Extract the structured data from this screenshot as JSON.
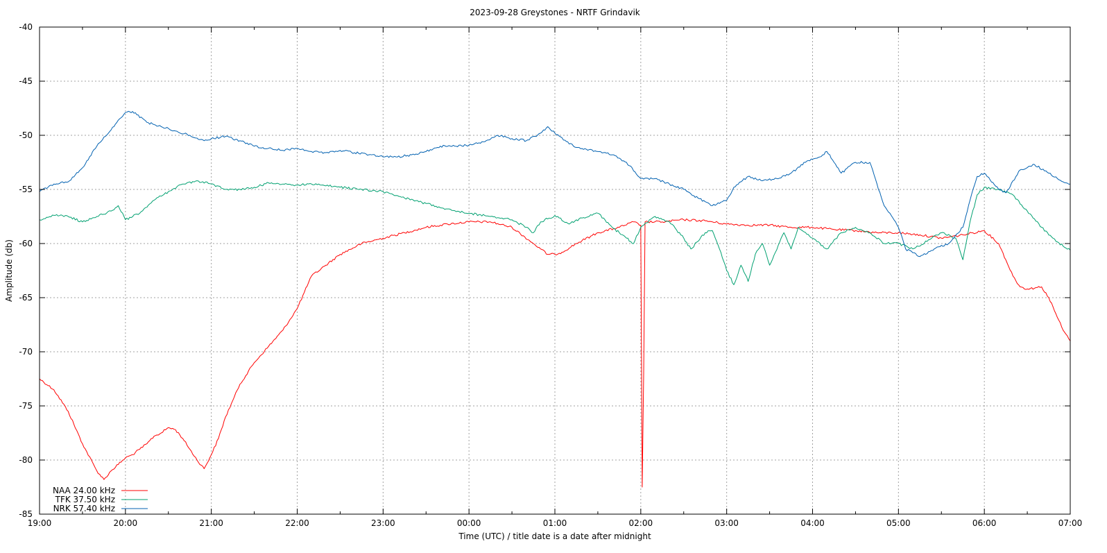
{
  "chart_data": {
    "type": "line",
    "title": "2023-09-28 Greystones - NRTF Grindavik",
    "xlabel": "Time (UTC) / title date is a date after midnight",
    "ylabel": "Amplitude (db)",
    "x_unit": "hours (19:00 to 07:00 next day)",
    "xlim": [
      "19:00",
      "07:00"
    ],
    "ylim": [
      -85,
      -40
    ],
    "x_ticks": [
      "19:00",
      "20:00",
      "21:00",
      "22:00",
      "23:00",
      "00:00",
      "01:00",
      "02:00",
      "03:00",
      "04:00",
      "05:00",
      "06:00",
      "07:00"
    ],
    "y_ticks": [
      "-40",
      "-45",
      "-50",
      "-55",
      "-60",
      "-65",
      "-70",
      "-75",
      "-80",
      "-85"
    ],
    "grid": true,
    "legend_position": "bottom-left",
    "series": [
      {
        "name": "NAA 24.00 kHz",
        "color": "#ff0000",
        "points": [
          [
            "19:00",
            -72.5
          ],
          [
            "19:10",
            -73.5
          ],
          [
            "19:20",
            -75.5
          ],
          [
            "19:30",
            -78.5
          ],
          [
            "19:40",
            -81.0
          ],
          [
            "19:45",
            -81.8
          ],
          [
            "19:50",
            -81.0
          ],
          [
            "20:00",
            -79.8
          ],
          [
            "20:05",
            -79.5
          ],
          [
            "20:10",
            -79.0
          ],
          [
            "20:15",
            -78.5
          ],
          [
            "20:20",
            -77.8
          ],
          [
            "20:25",
            -77.5
          ],
          [
            "20:30",
            -77.0
          ],
          [
            "20:35",
            -77.2
          ],
          [
            "20:40",
            -78.0
          ],
          [
            "20:45",
            -79.0
          ],
          [
            "20:50",
            -80.0
          ],
          [
            "20:55",
            -80.8
          ],
          [
            "21:00",
            -79.5
          ],
          [
            "21:05",
            -78.0
          ],
          [
            "21:10",
            -76.0
          ],
          [
            "21:15",
            -74.5
          ],
          [
            "21:20",
            -73.0
          ],
          [
            "21:30",
            -71.0
          ],
          [
            "21:40",
            -69.5
          ],
          [
            "21:50",
            -68.0
          ],
          [
            "22:00",
            -66.0
          ],
          [
            "22:05",
            -64.5
          ],
          [
            "22:10",
            -63.0
          ],
          [
            "22:20",
            -62.0
          ],
          [
            "22:30",
            -61.0
          ],
          [
            "22:45",
            -60.0
          ],
          [
            "23:00",
            -59.5
          ],
          [
            "23:15",
            -59.0
          ],
          [
            "23:30",
            -58.5
          ],
          [
            "23:45",
            -58.2
          ],
          [
            "00:00",
            -58.0
          ],
          [
            "00:15",
            -58.0
          ],
          [
            "00:30",
            -58.5
          ],
          [
            "00:45",
            -60.0
          ],
          [
            "00:50",
            -60.5
          ],
          [
            "00:55",
            -61.0
          ],
          [
            "01:00",
            -61.0
          ],
          [
            "01:05",
            -60.8
          ],
          [
            "01:15",
            -60.0
          ],
          [
            "01:30",
            -59.0
          ],
          [
            "01:45",
            -58.5
          ],
          [
            "01:55",
            -58.0
          ],
          [
            "02:00",
            -58.3
          ],
          [
            "02:01",
            -82.5
          ],
          [
            "02:02",
            -72.0
          ],
          [
            "02:03",
            -58.0
          ],
          [
            "02:15",
            -58.0
          ],
          [
            "02:30",
            -57.8
          ],
          [
            "02:45",
            -57.9
          ],
          [
            "03:00",
            -58.2
          ],
          [
            "03:15",
            -58.3
          ],
          [
            "03:30",
            -58.3
          ],
          [
            "03:45",
            -58.5
          ],
          [
            "04:00",
            -58.5
          ],
          [
            "04:15",
            -58.7
          ],
          [
            "04:30",
            -58.8
          ],
          [
            "04:45",
            -59.0
          ],
          [
            "05:00",
            -59.0
          ],
          [
            "05:15",
            -59.2
          ],
          [
            "05:30",
            -59.5
          ],
          [
            "05:45",
            -59.2
          ],
          [
            "06:00",
            -58.8
          ],
          [
            "06:10",
            -60.0
          ],
          [
            "06:15",
            -61.5
          ],
          [
            "06:20",
            -63.0
          ],
          [
            "06:25",
            -64.0
          ],
          [
            "06:30",
            -64.2
          ],
          [
            "06:40",
            -64.0
          ],
          [
            "06:45",
            -65.0
          ],
          [
            "06:50",
            -66.5
          ],
          [
            "06:55",
            -68.0
          ],
          [
            "07:00",
            -69.0
          ]
        ]
      },
      {
        "name": "TFK 37.50 kHz",
        "color": "#00a070",
        "points": [
          [
            "19:00",
            -57.8
          ],
          [
            "19:10",
            -57.4
          ],
          [
            "19:20",
            -57.5
          ],
          [
            "19:30",
            -58.0
          ],
          [
            "19:40",
            -57.5
          ],
          [
            "19:50",
            -57.0
          ],
          [
            "19:55",
            -56.5
          ],
          [
            "20:00",
            -57.8
          ],
          [
            "20:10",
            -57.2
          ],
          [
            "20:20",
            -56.0
          ],
          [
            "20:30",
            -55.2
          ],
          [
            "20:40",
            -54.5
          ],
          [
            "20:50",
            -54.2
          ],
          [
            "21:00",
            -54.5
          ],
          [
            "21:10",
            -55.0
          ],
          [
            "21:20",
            -55.0
          ],
          [
            "21:30",
            -54.8
          ],
          [
            "21:40",
            -54.4
          ],
          [
            "21:50",
            -54.5
          ],
          [
            "22:00",
            -54.6
          ],
          [
            "22:15",
            -54.5
          ],
          [
            "22:30",
            -54.8
          ],
          [
            "22:45",
            -55.0
          ],
          [
            "23:00",
            -55.2
          ],
          [
            "23:15",
            -55.8
          ],
          [
            "23:30",
            -56.3
          ],
          [
            "23:45",
            -56.8
          ],
          [
            "00:00",
            -57.2
          ],
          [
            "00:15",
            -57.5
          ],
          [
            "00:30",
            -57.8
          ],
          [
            "00:40",
            -58.5
          ],
          [
            "00:45",
            -59.0
          ],
          [
            "00:50",
            -58.0
          ],
          [
            "01:00",
            -57.4
          ],
          [
            "01:10",
            -58.2
          ],
          [
            "01:20",
            -57.6
          ],
          [
            "01:30",
            -57.2
          ],
          [
            "01:40",
            -58.5
          ],
          [
            "01:50",
            -59.5
          ],
          [
            "01:55",
            -60.0
          ],
          [
            "02:00",
            -58.5
          ],
          [
            "02:10",
            -57.5
          ],
          [
            "02:20",
            -58.0
          ],
          [
            "02:30",
            -59.5
          ],
          [
            "02:35",
            -60.5
          ],
          [
            "02:45",
            -59.0
          ],
          [
            "02:50",
            -58.8
          ],
          [
            "02:55",
            -60.5
          ],
          [
            "03:00",
            -62.5
          ],
          [
            "03:05",
            -63.8
          ],
          [
            "03:10",
            -62.0
          ],
          [
            "03:15",
            -63.5
          ],
          [
            "03:20",
            -61.0
          ],
          [
            "03:25",
            -60.0
          ],
          [
            "03:30",
            -62.0
          ],
          [
            "03:40",
            -59.0
          ],
          [
            "03:45",
            -60.5
          ],
          [
            "03:50",
            -58.5
          ],
          [
            "04:00",
            -59.5
          ],
          [
            "04:10",
            -60.5
          ],
          [
            "04:20",
            -59.0
          ],
          [
            "04:30",
            -58.5
          ],
          [
            "04:40",
            -59.0
          ],
          [
            "04:50",
            -60.0
          ],
          [
            "05:00",
            -60.0
          ],
          [
            "05:10",
            -60.5
          ],
          [
            "05:20",
            -59.8
          ],
          [
            "05:30",
            -59.0
          ],
          [
            "05:40",
            -59.5
          ],
          [
            "05:45",
            -61.5
          ],
          [
            "05:50",
            -58.0
          ],
          [
            "05:55",
            -55.5
          ],
          [
            "06:00",
            -54.8
          ],
          [
            "06:10",
            -55.0
          ],
          [
            "06:20",
            -55.5
          ],
          [
            "06:30",
            -57.0
          ],
          [
            "06:40",
            -58.5
          ],
          [
            "06:50",
            -59.8
          ],
          [
            "07:00",
            -60.6
          ]
        ]
      },
      {
        "name": "NRK 57.40 kHz",
        "color": "#0060b0",
        "points": [
          [
            "19:00",
            -55.2
          ],
          [
            "19:10",
            -54.5
          ],
          [
            "19:20",
            -54.3
          ],
          [
            "19:30",
            -53.0
          ],
          [
            "19:40",
            -51.0
          ],
          [
            "19:50",
            -49.5
          ],
          [
            "20:00",
            -47.9
          ],
          [
            "20:05",
            -47.8
          ],
          [
            "20:15",
            -48.8
          ],
          [
            "20:25",
            -49.2
          ],
          [
            "20:35",
            -49.6
          ],
          [
            "20:45",
            -50.0
          ],
          [
            "20:55",
            -50.5
          ],
          [
            "21:00",
            -50.3
          ],
          [
            "21:10",
            -50.1
          ],
          [
            "21:20",
            -50.5
          ],
          [
            "21:30",
            -51.0
          ],
          [
            "21:40",
            -51.2
          ],
          [
            "21:50",
            -51.4
          ],
          [
            "22:00",
            -51.2
          ],
          [
            "22:10",
            -51.5
          ],
          [
            "22:20",
            -51.6
          ],
          [
            "22:30",
            -51.4
          ],
          [
            "22:40",
            -51.6
          ],
          [
            "22:50",
            -51.8
          ],
          [
            "23:00",
            -52.0
          ],
          [
            "23:10",
            -52.0
          ],
          [
            "23:20",
            -51.8
          ],
          [
            "23:30",
            -51.5
          ],
          [
            "23:40",
            -51.0
          ],
          [
            "23:50",
            -51.0
          ],
          [
            "00:00",
            -50.9
          ],
          [
            "00:10",
            -50.6
          ],
          [
            "00:20",
            -50.0
          ],
          [
            "00:30",
            -50.3
          ],
          [
            "00:40",
            -50.5
          ],
          [
            "00:50",
            -49.8
          ],
          [
            "00:55",
            -49.2
          ],
          [
            "01:00",
            -49.8
          ],
          [
            "01:10",
            -50.8
          ],
          [
            "01:20",
            -51.3
          ],
          [
            "01:30",
            -51.5
          ],
          [
            "01:40",
            -51.8
          ],
          [
            "01:50",
            -52.5
          ],
          [
            "02:00",
            -54.0
          ],
          [
            "02:10",
            -54.0
          ],
          [
            "02:20",
            -54.5
          ],
          [
            "02:30",
            -55.0
          ],
          [
            "02:40",
            -55.8
          ],
          [
            "02:50",
            -56.5
          ],
          [
            "03:00",
            -56.0
          ],
          [
            "03:05",
            -54.8
          ],
          [
            "03:15",
            -53.8
          ],
          [
            "03:25",
            -54.2
          ],
          [
            "03:35",
            -54.0
          ],
          [
            "03:45",
            -53.5
          ],
          [
            "03:55",
            -52.5
          ],
          [
            "04:05",
            -52.0
          ],
          [
            "04:10",
            -51.5
          ],
          [
            "04:15",
            -52.5
          ],
          [
            "04:20",
            -53.5
          ],
          [
            "04:30",
            -52.5
          ],
          [
            "04:40",
            -52.5
          ],
          [
            "04:45",
            -54.5
          ],
          [
            "04:50",
            -56.5
          ],
          [
            "05:00",
            -58.5
          ],
          [
            "05:05",
            -60.5
          ],
          [
            "05:15",
            -61.2
          ],
          [
            "05:25",
            -60.5
          ],
          [
            "05:35",
            -60.0
          ],
          [
            "05:45",
            -58.5
          ],
          [
            "05:50",
            -56.0
          ],
          [
            "05:55",
            -53.8
          ],
          [
            "06:00",
            -53.5
          ],
          [
            "06:10",
            -55.0
          ],
          [
            "06:15",
            -55.3
          ],
          [
            "06:25",
            -53.2
          ],
          [
            "06:35",
            -52.7
          ],
          [
            "06:45",
            -53.5
          ],
          [
            "06:55",
            -54.3
          ],
          [
            "07:00",
            -54.5
          ]
        ]
      }
    ]
  }
}
